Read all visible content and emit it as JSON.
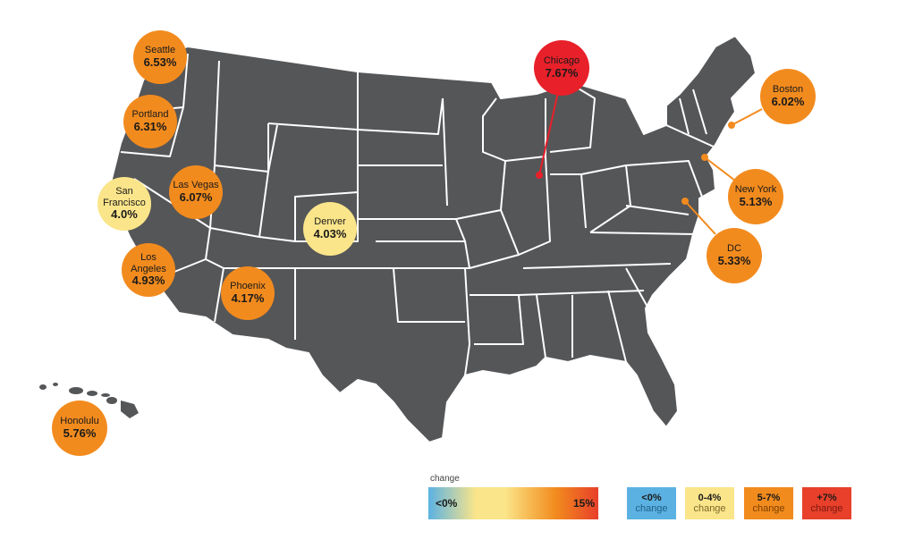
{
  "colors": {
    "land": "#555658",
    "border": "#ffffff",
    "yellow": "#fbe58a",
    "orange": "#f28b1e",
    "red": "#e8202a",
    "blue": "#5bb2e2",
    "leader_orange": "#f28b1e",
    "leader_red": "#e8202a"
  },
  "cities": [
    {
      "id": "seattle",
      "name": "Seattle",
      "value": "6.53%",
      "tone": "orange"
    },
    {
      "id": "portland",
      "name": "Portland",
      "value": "6.31%",
      "tone": "orange"
    },
    {
      "id": "sanfrancisco",
      "name": "San\nFrancisco",
      "value": "4.0%",
      "tone": "yellow"
    },
    {
      "id": "lasvegas",
      "name": "Las Vegas",
      "value": "6.07%",
      "tone": "orange"
    },
    {
      "id": "losangeles",
      "name": "Los\nAngeles",
      "value": "4.93%",
      "tone": "orange"
    },
    {
      "id": "phoenix",
      "name": "Phoenix",
      "value": "4.17%",
      "tone": "orange"
    },
    {
      "id": "denver",
      "name": "Denver",
      "value": "4.03%",
      "tone": "yellow"
    },
    {
      "id": "chicago",
      "name": "Chicago",
      "value": "7.67%",
      "tone": "red"
    },
    {
      "id": "boston",
      "name": "Boston",
      "value": "6.02%",
      "tone": "orange"
    },
    {
      "id": "newyork",
      "name": "New York",
      "value": "5.13%",
      "tone": "orange"
    },
    {
      "id": "dc",
      "name": "DC",
      "value": "5.33%",
      "tone": "orange"
    },
    {
      "id": "honolulu",
      "name": "Honolulu",
      "value": "5.76%",
      "tone": "orange"
    }
  ],
  "legend": {
    "title": "change",
    "gradient_low": "<0%",
    "gradient_high": "15%",
    "bins": [
      {
        "range": "<0%",
        "label": "change",
        "color": "#5bb2e2",
        "label_color": "#1e5f86"
      },
      {
        "range": "0-4%",
        "label": "change",
        "color": "#fbe58a",
        "label_color": "#7a6a2a"
      },
      {
        "range": "5-7%",
        "label": "change",
        "color": "#f28b1e",
        "label_color": "#7a3f00"
      },
      {
        "range": "+7%",
        "label": "change",
        "color": "#e8402a",
        "label_color": "#7a1a10"
      }
    ]
  }
}
